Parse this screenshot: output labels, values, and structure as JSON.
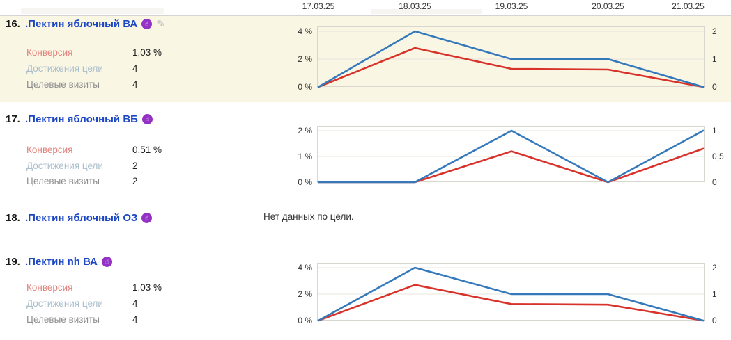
{
  "date_axis": {
    "labels": [
      "17.03.25",
      "18.03.25",
      "19.03.25",
      "20.03.25",
      "21.03.25"
    ]
  },
  "icons": {
    "goal_badge_glyph": "☝",
    "edit_glyph": "✎"
  },
  "colors": {
    "highlight_row_bg": "#faf6e4",
    "goal_link_blue": "#1b46c4",
    "goal_badge_purple": "#9331c5",
    "conversion_line_red": "#d8332b",
    "reaches_line_blue": "#3579ba",
    "conversion_label": "#e2837d",
    "reaches_label": "#abbfcc",
    "visits_label": "#8f8f8f"
  },
  "goals": [
    {
      "rank": "16.",
      "title": ".Пектин яблочный ВА",
      "metrics": {
        "conversion_label": "Конверсия",
        "conversion_value": "1,03 %",
        "reaches_label": "Достижения цели",
        "reaches_value": "4",
        "visits_label": "Целевые визиты",
        "visits_value": "4"
      }
    },
    {
      "rank": "17.",
      "title": ".Пектин яблочный ВБ",
      "metrics": {
        "conversion_label": "Конверсия",
        "conversion_value": "0,51 %",
        "reaches_label": "Достижения цели",
        "reaches_value": "2",
        "visits_label": "Целевые визиты",
        "visits_value": "2"
      }
    },
    {
      "rank": "18.",
      "title": ".Пектин яблочный ОЗ",
      "no_data": "Нет данных по цели."
    },
    {
      "rank": "19.",
      "title": ".Пектин nh ВА",
      "metrics": {
        "conversion_label": "Конверсия",
        "conversion_value": "1,03 %",
        "reaches_label": "Достижения цели",
        "reaches_value": "4",
        "visits_label": "Целевые визиты",
        "visits_value": "4"
      }
    }
  ],
  "chart_data": [
    {
      "goal_title": ".Пектин яблочный ВА",
      "type": "line",
      "x": [
        "17.03.25",
        "18.03.25",
        "19.03.25",
        "20.03.25",
        "21.03.25"
      ],
      "left_axis": {
        "unit": "%",
        "ticks": [
          "4 %",
          "2 %",
          "0 %"
        ],
        "max": 4
      },
      "right_axis": {
        "ticks": [
          "2",
          "1",
          "0"
        ],
        "max": 2
      },
      "series": [
        {
          "key": "conversion-line",
          "name": "Конверсия",
          "axis": "left",
          "color": "#d8332b",
          "values": [
            0,
            2.8,
            1.3,
            1.25,
            0
          ]
        },
        {
          "key": "reaches-line",
          "name": "Достижения цели",
          "axis": "right",
          "color": "#3579ba",
          "values": [
            0,
            2,
            1,
            1,
            0
          ]
        }
      ]
    },
    {
      "goal_title": ".Пектин яблочный ВБ",
      "type": "line",
      "x": [
        "17.03.25",
        "18.03.25",
        "19.03.25",
        "20.03.25",
        "21.03.25"
      ],
      "left_axis": {
        "unit": "%",
        "ticks": [
          "2 %",
          "1 %",
          "0 %"
        ],
        "max": 2
      },
      "right_axis": {
        "ticks": [
          "1",
          "0,5",
          "0"
        ],
        "max": 1
      },
      "series": [
        {
          "key": "conversion-line",
          "name": "Конверсия",
          "axis": "left",
          "color": "#d8332b",
          "values": [
            0,
            0,
            1.2,
            0,
            1.3
          ]
        },
        {
          "key": "reaches-line",
          "name": "Достижения цели",
          "axis": "right",
          "color": "#3579ba",
          "values": [
            0,
            0,
            1,
            0,
            1
          ]
        }
      ]
    },
    {
      "goal_title": ".Пектин nh ВА",
      "type": "line",
      "x": [
        "17.03.25",
        "18.03.25",
        "19.03.25",
        "20.03.25",
        "21.03.25"
      ],
      "left_axis": {
        "unit": "%",
        "ticks": [
          "4 %",
          "2 %",
          "0 %"
        ],
        "max": 4
      },
      "right_axis": {
        "ticks": [
          "2",
          "1",
          "0"
        ],
        "max": 2
      },
      "series": [
        {
          "key": "conversion-line",
          "name": "Конверсия",
          "axis": "left",
          "color": "#d8332b",
          "values": [
            0,
            2.7,
            1.25,
            1.2,
            0
          ]
        },
        {
          "key": "reaches-line",
          "name": "Достижения цели",
          "axis": "right",
          "color": "#3579ba",
          "values": [
            0,
            2,
            1,
            1,
            0
          ]
        }
      ]
    }
  ]
}
